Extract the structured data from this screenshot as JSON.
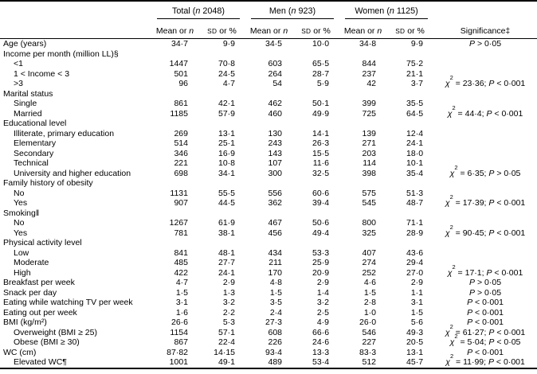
{
  "table": {
    "groups": [
      {
        "pre": "Total (",
        "n": "n",
        "post": " 2048)"
      },
      {
        "pre": "Men (",
        "n": "n",
        "post": " 923)"
      },
      {
        "pre": "Women (",
        "n": "n",
        "post": " 1125)"
      }
    ],
    "subheader": {
      "mean_pre": "Mean or ",
      "mean_n": "n",
      "sd": "SD",
      "sd_post": " or %"
    },
    "significance_header": "Significance‡",
    "rows": [
      {
        "label": "Age (years)",
        "indent": 0,
        "values": [
          "34·7",
          "9·9",
          "34·5",
          "10·0",
          "34·8",
          "9·9"
        ],
        "sig": "P > 0·05"
      },
      {
        "label": "Income per month (million LL)§",
        "indent": 0,
        "values": [],
        "sig": ""
      },
      {
        "label": "<1",
        "indent": 1,
        "values": [
          "1447",
          "70·8",
          "603",
          "65·5",
          "844",
          "75·2"
        ],
        "sig": ""
      },
      {
        "label": "1 < Income < 3",
        "indent": 1,
        "values": [
          "501",
          "24·5",
          "264",
          "28·7",
          "237",
          "21·1"
        ],
        "sig": ""
      },
      {
        "label": ">3",
        "indent": 1,
        "values": [
          "96",
          "4·7",
          "54",
          "5·9",
          "42",
          "3·7"
        ],
        "sig": "χ² = 23·36; P < 0·001"
      },
      {
        "label": "Marital status",
        "indent": 0,
        "values": [],
        "sig": ""
      },
      {
        "label": "Single",
        "indent": 1,
        "values": [
          "861",
          "42·1",
          "462",
          "50·1",
          "399",
          "35·5"
        ],
        "sig": ""
      },
      {
        "label": "Married",
        "indent": 1,
        "values": [
          "1185",
          "57·9",
          "460",
          "49·9",
          "725",
          "64·5"
        ],
        "sig": "χ² = 44·4; P < 0·001"
      },
      {
        "label": "Educational level",
        "indent": 0,
        "values": [],
        "sig": ""
      },
      {
        "label": "Illiterate, primary education",
        "indent": 1,
        "values": [
          "269",
          "13·1",
          "130",
          "14·1",
          "139",
          "12·4"
        ],
        "sig": ""
      },
      {
        "label": "Elementary",
        "indent": 1,
        "values": [
          "514",
          "25·1",
          "243",
          "26·3",
          "271",
          "24·1"
        ],
        "sig": ""
      },
      {
        "label": "Secondary",
        "indent": 1,
        "values": [
          "346",
          "16·9",
          "143",
          "15·5",
          "203",
          "18·0"
        ],
        "sig": ""
      },
      {
        "label": "Technical",
        "indent": 1,
        "values": [
          "221",
          "10·8",
          "107",
          "11·6",
          "114",
          "10·1"
        ],
        "sig": ""
      },
      {
        "label": "University and higher education",
        "indent": 1,
        "values": [
          "698",
          "34·1",
          "300",
          "32·5",
          "398",
          "35·4"
        ],
        "sig": "χ² = 6·35; P > 0·05"
      },
      {
        "label": "Family history of obesity",
        "indent": 0,
        "values": [],
        "sig": ""
      },
      {
        "label": "No",
        "indent": 1,
        "values": [
          "1131",
          "55·5",
          "556",
          "60·6",
          "575",
          "51·3"
        ],
        "sig": ""
      },
      {
        "label": "Yes",
        "indent": 1,
        "values": [
          "907",
          "44·5",
          "362",
          "39·4",
          "545",
          "48·7"
        ],
        "sig": "χ² = 17·39; P < 0·001"
      },
      {
        "label": "Smoking‖",
        "indent": 0,
        "values": [],
        "sig": ""
      },
      {
        "label": "No",
        "indent": 1,
        "values": [
          "1267",
          "61·9",
          "467",
          "50·6",
          "800",
          "71·1"
        ],
        "sig": ""
      },
      {
        "label": "Yes",
        "indent": 1,
        "values": [
          "781",
          "38·1",
          "456",
          "49·4",
          "325",
          "28·9"
        ],
        "sig": "χ² = 90·45; P < 0·001"
      },
      {
        "label": "Physical activity level",
        "indent": 0,
        "values": [],
        "sig": ""
      },
      {
        "label": "Low",
        "indent": 1,
        "values": [
          "841",
          "48·1",
          "434",
          "53·3",
          "407",
          "43·6"
        ],
        "sig": ""
      },
      {
        "label": "Moderate",
        "indent": 1,
        "values": [
          "485",
          "27·7",
          "211",
          "25·9",
          "274",
          "29·4"
        ],
        "sig": ""
      },
      {
        "label": "High",
        "indent": 1,
        "values": [
          "422",
          "24·1",
          "170",
          "20·9",
          "252",
          "27·0"
        ],
        "sig": "χ² = 17·1; P < 0·001"
      },
      {
        "label": "Breakfast per week",
        "indent": 0,
        "values": [
          "4·7",
          "2·9",
          "4·8",
          "2·9",
          "4·6",
          "2·9"
        ],
        "sig": "P > 0·05"
      },
      {
        "label": "Snack per day",
        "indent": 0,
        "values": [
          "1·5",
          "1·3",
          "1·5",
          "1·4",
          "1·5",
          "1·1"
        ],
        "sig": "P > 0·05"
      },
      {
        "label": "Eating while watching TV per week",
        "indent": 0,
        "values": [
          "3·1",
          "3·2",
          "3·5",
          "3·2",
          "2·8",
          "3·1"
        ],
        "sig": "P < 0·001"
      },
      {
        "label": "Eating out per week",
        "indent": 0,
        "values": [
          "1·6",
          "2·2",
          "2·4",
          "2·5",
          "1·0",
          "1·5"
        ],
        "sig": "P < 0·001"
      },
      {
        "label": "BMI (kg/m²)",
        "indent": 0,
        "values": [
          "26·6",
          "5·3",
          "27·3",
          "4·9",
          "26·0",
          "5·6"
        ],
        "sig": "P < 0·001"
      },
      {
        "label": "Overweight (BMI ≥ 25)",
        "indent": 1,
        "values": [
          "1154",
          "57·1",
          "608",
          "66·6",
          "546",
          "49·3"
        ],
        "sig": "χ² = 61·27; P < 0·001"
      },
      {
        "label": "Obese (BMI ≥ 30)",
        "indent": 1,
        "values": [
          "867",
          "22·4",
          "226",
          "24·6",
          "227",
          "20·5"
        ],
        "sig": "χ² = 5·04; P < 0·05"
      },
      {
        "label": "WC (cm)",
        "indent": 0,
        "values": [
          "87·82",
          "14·15",
          "93·4",
          "13·3",
          "83·3",
          "13·1"
        ],
        "sig": "P < 0·001"
      },
      {
        "label": "Elevated WC¶",
        "indent": 1,
        "values": [
          "1001",
          "49·1",
          "489",
          "53·4",
          "512",
          "45·7"
        ],
        "sig": "χ² = 11·99; P < 0·001"
      }
    ]
  }
}
